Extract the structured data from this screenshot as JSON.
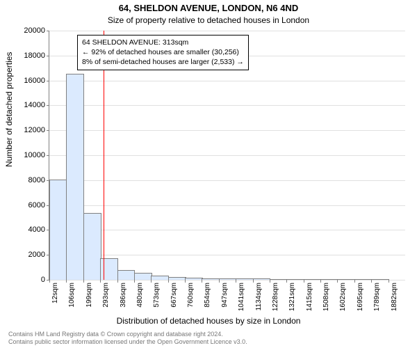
{
  "title": "64, SHELDON AVENUE, LONDON, N6 4ND",
  "subtitle": "Size of property relative to detached houses in London",
  "ylabel": "Number of detached properties",
  "xlabel": "Distribution of detached houses by size in London",
  "chart": {
    "type": "histogram",
    "ylim": [
      0,
      20000
    ],
    "ytick_step": 2000,
    "yticks": [
      0,
      2000,
      4000,
      6000,
      8000,
      10000,
      12000,
      14000,
      16000,
      18000,
      20000
    ],
    "xticks": [
      "12sqm",
      "106sqm",
      "199sqm",
      "293sqm",
      "386sqm",
      "480sqm",
      "573sqm",
      "667sqm",
      "760sqm",
      "854sqm",
      "947sqm",
      "1041sqm",
      "1134sqm",
      "1228sqm",
      "1321sqm",
      "1415sqm",
      "1508sqm",
      "1602sqm",
      "1695sqm",
      "1789sqm",
      "1882sqm"
    ],
    "bar_values": [
      8000,
      16500,
      5300,
      1650,
      700,
      500,
      260,
      190,
      130,
      80,
      60,
      40,
      30,
      20,
      20,
      10,
      10,
      10,
      5,
      5
    ],
    "bar_fill": "#dbeafe",
    "bar_stroke": "#808080",
    "grid_color": "#e0e0e0",
    "axis_color": "#808080",
    "background_color": "#ffffff",
    "refline_x_sqm": 313,
    "refline_color": "#ff0000",
    "annotation": {
      "line1": "64 SHELDON AVENUE: 313sqm",
      "line2": "← 92% of detached houses are smaller (30,256)",
      "line3": "8% of semi-detached houses are larger (2,533) →"
    }
  },
  "footer": {
    "line1": "Contains HM Land Registry data © Crown copyright and database right 2024.",
    "line2": "Contains public sector information licensed under the Open Government Licence v3.0."
  }
}
